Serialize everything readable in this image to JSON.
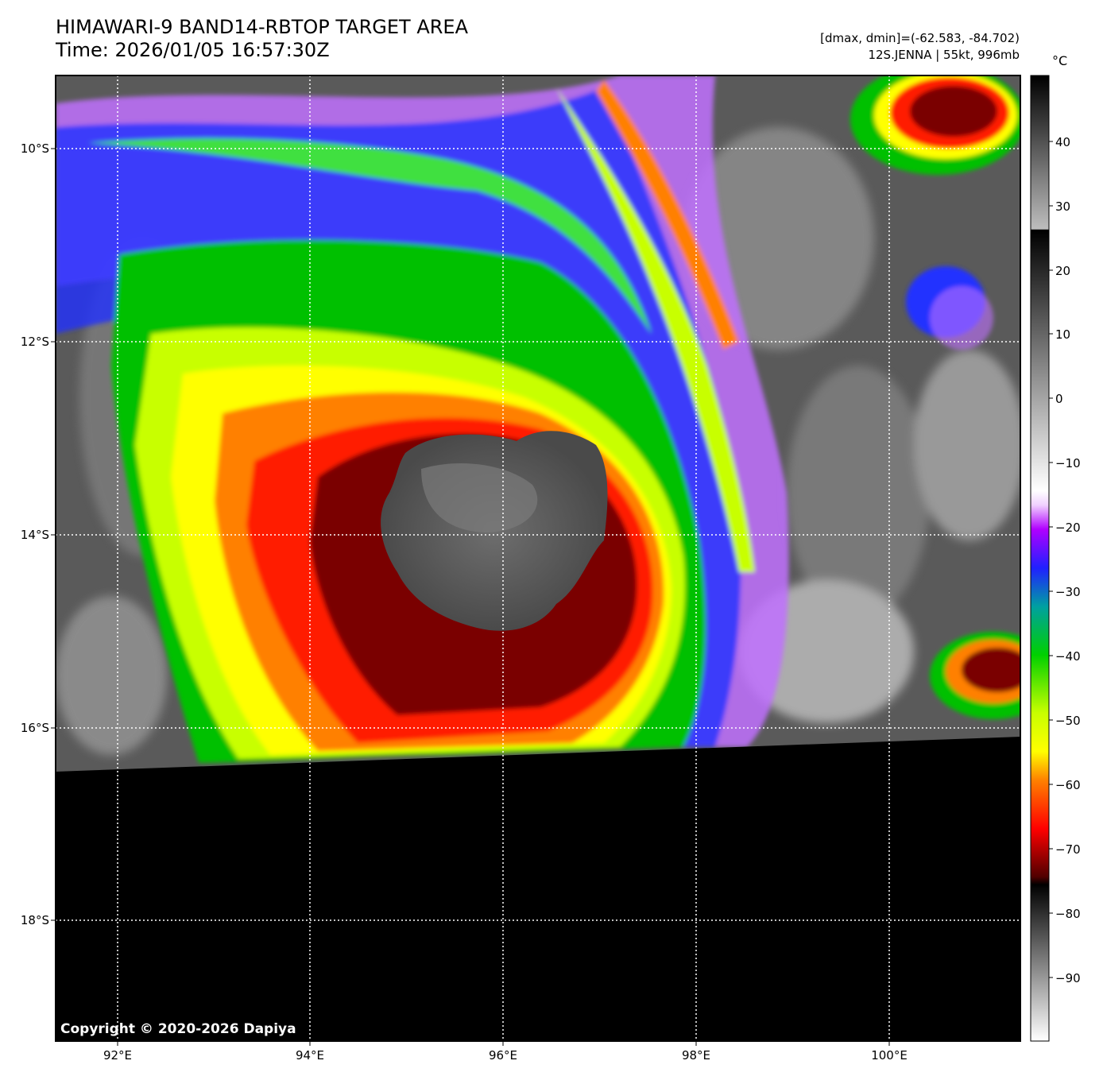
{
  "header": {
    "title_line1": "HIMAWARI-9 BAND14-RBTOP TARGET AREA",
    "title_line2": "Time: 2026/01/05 16:57:30Z",
    "meta_line1": "[dmax, dmin]=(-62.583, -84.702)",
    "meta_line2": "12S.JENNA | 55kt, 996mb"
  },
  "map": {
    "lon_labels": [
      "92°E",
      "94°E",
      "96°E",
      "98°E",
      "100°E"
    ],
    "lat_labels": [
      "10°S",
      "12°S",
      "14°S",
      "16°S",
      "18°S"
    ],
    "copyright": "Copyright © 2020-2026 Dapiya",
    "grid": "dotted white",
    "storm_name": "12S.JENNA"
  },
  "colorbar": {
    "unit": "°C",
    "ticks": [
      "40",
      "30",
      "20",
      "10",
      "0",
      "−10",
      "−20",
      "−30",
      "−40",
      "−50",
      "−60",
      "−70",
      "−80",
      "−90"
    ]
  }
}
